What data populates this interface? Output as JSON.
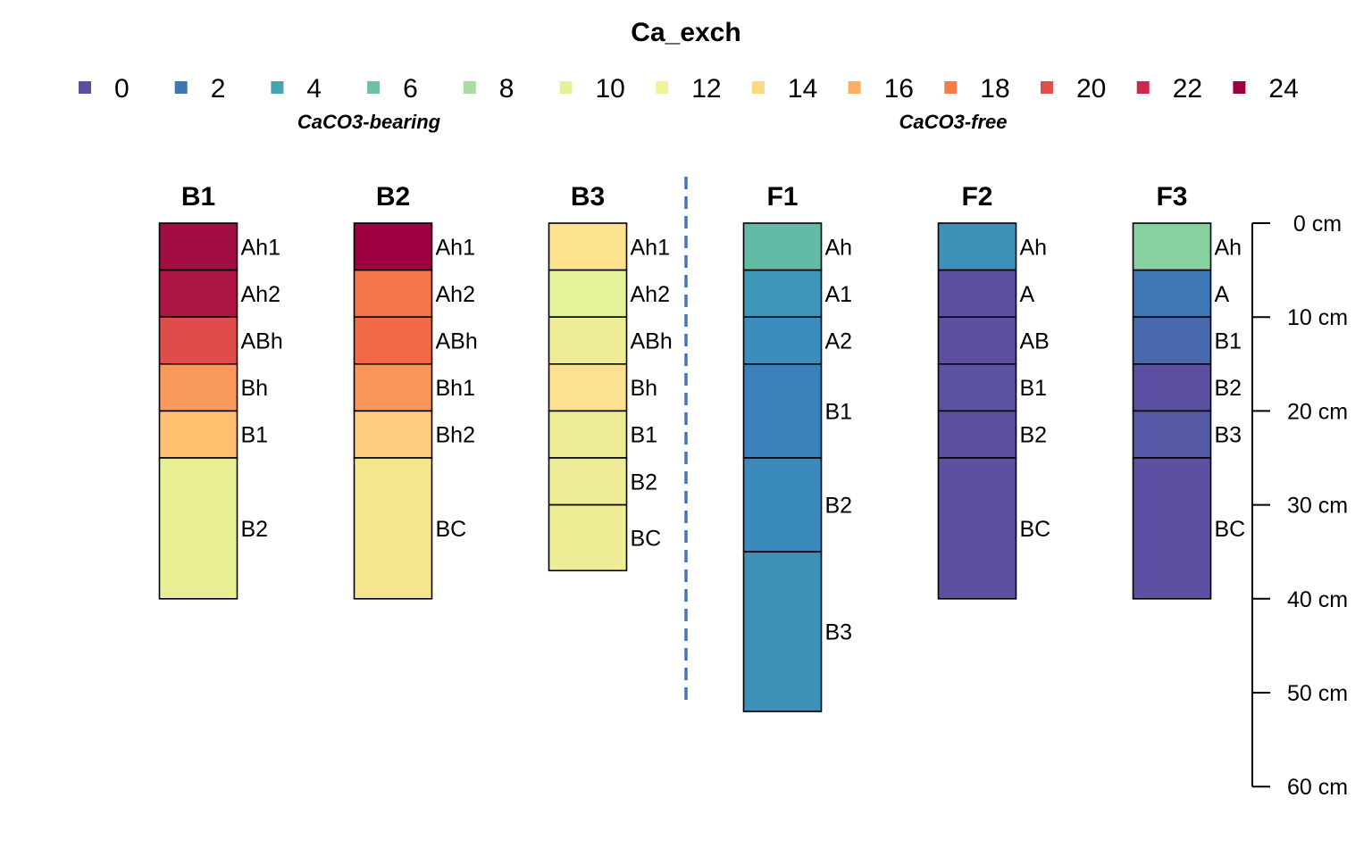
{
  "chart_data": {
    "type": "soil-profile",
    "title": "Ca_exch",
    "legend": {
      "placement": "top",
      "breaks": [
        {
          "label": "0",
          "color": "#5E4FA2"
        },
        {
          "label": "2",
          "color": "#3E75B4"
        },
        {
          "label": "4",
          "color": "#46A3AF"
        },
        {
          "label": "6",
          "color": "#6BC2A3"
        },
        {
          "label": "8",
          "color": "#A9DCA3"
        },
        {
          "label": "10",
          "color": "#E0F29A"
        },
        {
          "label": "12",
          "color": "#F3F29A"
        },
        {
          "label": "14",
          "color": "#FDD882"
        },
        {
          "label": "16",
          "color": "#FCAE61"
        },
        {
          "label": "18",
          "color": "#F47E4A"
        },
        {
          "label": "20",
          "color": "#E0504B"
        },
        {
          "label": "22",
          "color": "#C9294C"
        },
        {
          "label": "24",
          "color": "#9E0142"
        }
      ]
    },
    "groups": [
      {
        "label": "CaCO3-bearing",
        "profiles": [
          "B1",
          "B2",
          "B3"
        ]
      },
      {
        "label": "CaCO3-free",
        "profiles": [
          "F1",
          "F2",
          "F3"
        ]
      }
    ],
    "depth_axis": {
      "min": 0,
      "max": 60,
      "step": 10,
      "unit": "cm",
      "tick_labels": [
        "0 cm",
        "10 cm",
        "20 cm",
        "30 cm",
        "40 cm",
        "50 cm",
        "60 cm"
      ]
    },
    "profiles": [
      {
        "name": "B1",
        "horizons": [
          {
            "name": "Ah1",
            "top": 0,
            "bottom": 5,
            "color": "#A20E44"
          },
          {
            "name": "Ah2",
            "top": 5,
            "bottom": 10,
            "color": "#AC1444"
          },
          {
            "name": "ABh",
            "top": 10,
            "bottom": 15,
            "color": "#DF4C4B"
          },
          {
            "name": "Bh",
            "top": 15,
            "bottom": 20,
            "color": "#F9995B"
          },
          {
            "name": "B1",
            "top": 20,
            "bottom": 25,
            "color": "#FEBF6F"
          },
          {
            "name": "B2",
            "top": 25,
            "bottom": 40,
            "color": "#E9F094"
          }
        ]
      },
      {
        "name": "B2",
        "horizons": [
          {
            "name": "Ah1",
            "top": 0,
            "bottom": 5,
            "color": "#9E0142"
          },
          {
            "name": "Ah2",
            "top": 5,
            "bottom": 10,
            "color": "#F4754A"
          },
          {
            "name": "ABh",
            "top": 10,
            "bottom": 15,
            "color": "#F26A45"
          },
          {
            "name": "Bh1",
            "top": 15,
            "bottom": 20,
            "color": "#F9975A"
          },
          {
            "name": "Bh2",
            "top": 20,
            "bottom": 25,
            "color": "#FECC7E"
          },
          {
            "name": "BC",
            "top": 25,
            "bottom": 40,
            "color": "#F5E68D"
          }
        ]
      },
      {
        "name": "B3",
        "horizons": [
          {
            "name": "Ah1",
            "top": 0,
            "bottom": 5,
            "color": "#FCE28D"
          },
          {
            "name": "Ah2",
            "top": 5,
            "bottom": 10,
            "color": "#E3F49A"
          },
          {
            "name": "ABh",
            "top": 10,
            "bottom": 15,
            "color": "#EEEC97"
          },
          {
            "name": "Bh",
            "top": 15,
            "bottom": 20,
            "color": "#FBE190"
          },
          {
            "name": "B1",
            "top": 20,
            "bottom": 25,
            "color": "#EEEB96"
          },
          {
            "name": "B2",
            "top": 25,
            "bottom": 30,
            "color": "#EEEC97"
          },
          {
            "name": "BC",
            "top": 30,
            "bottom": 37,
            "color": "#EEEC95"
          }
        ]
      },
      {
        "name": "F1",
        "horizons": [
          {
            "name": "Ah",
            "top": 0,
            "bottom": 5,
            "color": "#62BCA5"
          },
          {
            "name": "A1",
            "top": 5,
            "bottom": 10,
            "color": "#3E97B8"
          },
          {
            "name": "A2",
            "top": 10,
            "bottom": 15,
            "color": "#3A8DBD"
          },
          {
            "name": "B1",
            "top": 15,
            "bottom": 25,
            "color": "#3A80BA"
          },
          {
            "name": "B2",
            "top": 25,
            "bottom": 35,
            "color": "#3A8ABB"
          },
          {
            "name": "B3",
            "top": 35,
            "bottom": 52,
            "color": "#3D91B8"
          }
        ]
      },
      {
        "name": "F2",
        "horizons": [
          {
            "name": "Ah",
            "top": 0,
            "bottom": 5,
            "color": "#3D91B8"
          },
          {
            "name": "A",
            "top": 5,
            "bottom": 10,
            "color": "#5E4FA2"
          },
          {
            "name": "AB",
            "top": 10,
            "bottom": 15,
            "color": "#5E4FA2"
          },
          {
            "name": "B1",
            "top": 15,
            "bottom": 20,
            "color": "#5A54A3"
          },
          {
            "name": "B2",
            "top": 20,
            "bottom": 25,
            "color": "#5E4FA2"
          },
          {
            "name": "BC",
            "top": 25,
            "bottom": 40,
            "color": "#5E4FA2"
          }
        ]
      },
      {
        "name": "F3",
        "horizons": [
          {
            "name": "Ah",
            "top": 0,
            "bottom": 5,
            "color": "#88D09F"
          },
          {
            "name": "A",
            "top": 5,
            "bottom": 10,
            "color": "#3D77B5"
          },
          {
            "name": "B1",
            "top": 10,
            "bottom": 15,
            "color": "#4A68AE"
          },
          {
            "name": "B2",
            "top": 15,
            "bottom": 20,
            "color": "#5C50A2"
          },
          {
            "name": "B3",
            "top": 20,
            "bottom": 25,
            "color": "#5558A5"
          },
          {
            "name": "BC",
            "top": 25,
            "bottom": 40,
            "color": "#5E4FA2"
          }
        ]
      }
    ]
  }
}
